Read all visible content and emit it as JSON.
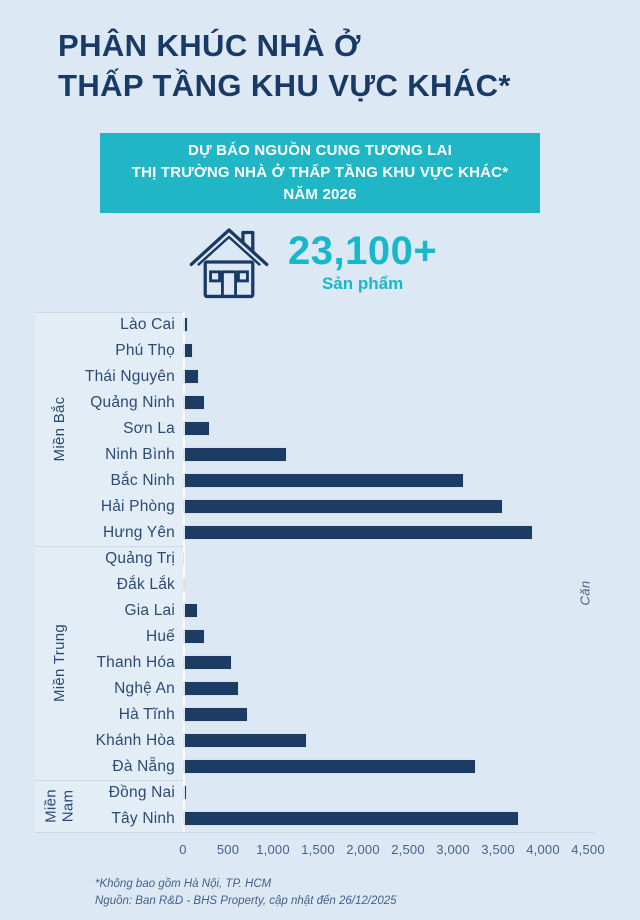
{
  "header": {
    "title_line1": "PHÂN KHÚC NHÀ Ở",
    "title_line2": "THẤP TẦNG KHU VỰC KHÁC*",
    "banner_line1": "DỰ BÁO NGUỒN CUNG TƯƠNG LAI",
    "banner_line2": "THỊ TRƯỜNG NHÀ Ở THẤP TẦNG KHU VỰC KHÁC*",
    "banner_line3": "NĂM 2026"
  },
  "stat": {
    "icon": "house-icon",
    "value": "23,100+",
    "unit": "Sản phẩm"
  },
  "chart_data": {
    "type": "bar",
    "orientation": "horizontal",
    "title": "Dự báo nguồn cung tương lai thị trường nhà ở thấp tầng khu vực khác năm 2026",
    "xlabel": "",
    "ylabel": "Căn",
    "xlim": [
      0,
      4500
    ],
    "grid": false,
    "x_ticks": [
      "0",
      "500",
      "1,000",
      "1,500",
      "2,000",
      "2,500",
      "3,000",
      "3,500",
      "4,000",
      "4,500"
    ],
    "groups": [
      {
        "name": "Miền Bắc",
        "items": [
          {
            "label": "Lào Cai",
            "value": 50
          },
          {
            "label": "Phú Thọ",
            "value": 110
          },
          {
            "label": "Thái Nguyên",
            "value": 175
          },
          {
            "label": "Quảng Ninh",
            "value": 245
          },
          {
            "label": "Sơn La",
            "value": 300
          },
          {
            "label": "Ninh Bình",
            "value": 1160
          },
          {
            "label": "Bắc Ninh",
            "value": 3120
          },
          {
            "label": "Hải Phòng",
            "value": 3550
          },
          {
            "label": "Hưng Yên",
            "value": 3890
          }
        ]
      },
      {
        "name": "Miền Trung",
        "items": [
          {
            "label": "Quảng Trị",
            "value": 15
          },
          {
            "label": "Đắk Lắk",
            "value": 30
          },
          {
            "label": "Gia Lai",
            "value": 170
          },
          {
            "label": "Huế",
            "value": 240
          },
          {
            "label": "Thanh Hóa",
            "value": 545
          },
          {
            "label": "Nghệ An",
            "value": 620
          },
          {
            "label": "Hà Tĩnh",
            "value": 720
          },
          {
            "label": "Khánh Hòa",
            "value": 1380
          },
          {
            "label": "Đà Nẵng",
            "value": 3260
          }
        ]
      },
      {
        "name": "Miền Nam",
        "items": [
          {
            "label": "Đồng Nai",
            "value": 40
          },
          {
            "label": "Tây Ninh",
            "value": 3730
          }
        ]
      }
    ]
  },
  "footer": {
    "note": "*Không bao gồm Hà Nội, TP. HCM",
    "source": "Nguồn: Ban R&D - BHS Property, cập nhật đến 26/12/2025"
  },
  "colors": {
    "background": "#dce8f4",
    "title_navy": "#1a3a66",
    "banner_teal": "#20b6c6",
    "accent_teal": "#17b8cb",
    "bar_navy": "#1c3c66",
    "axis_text": "#46618c"
  }
}
